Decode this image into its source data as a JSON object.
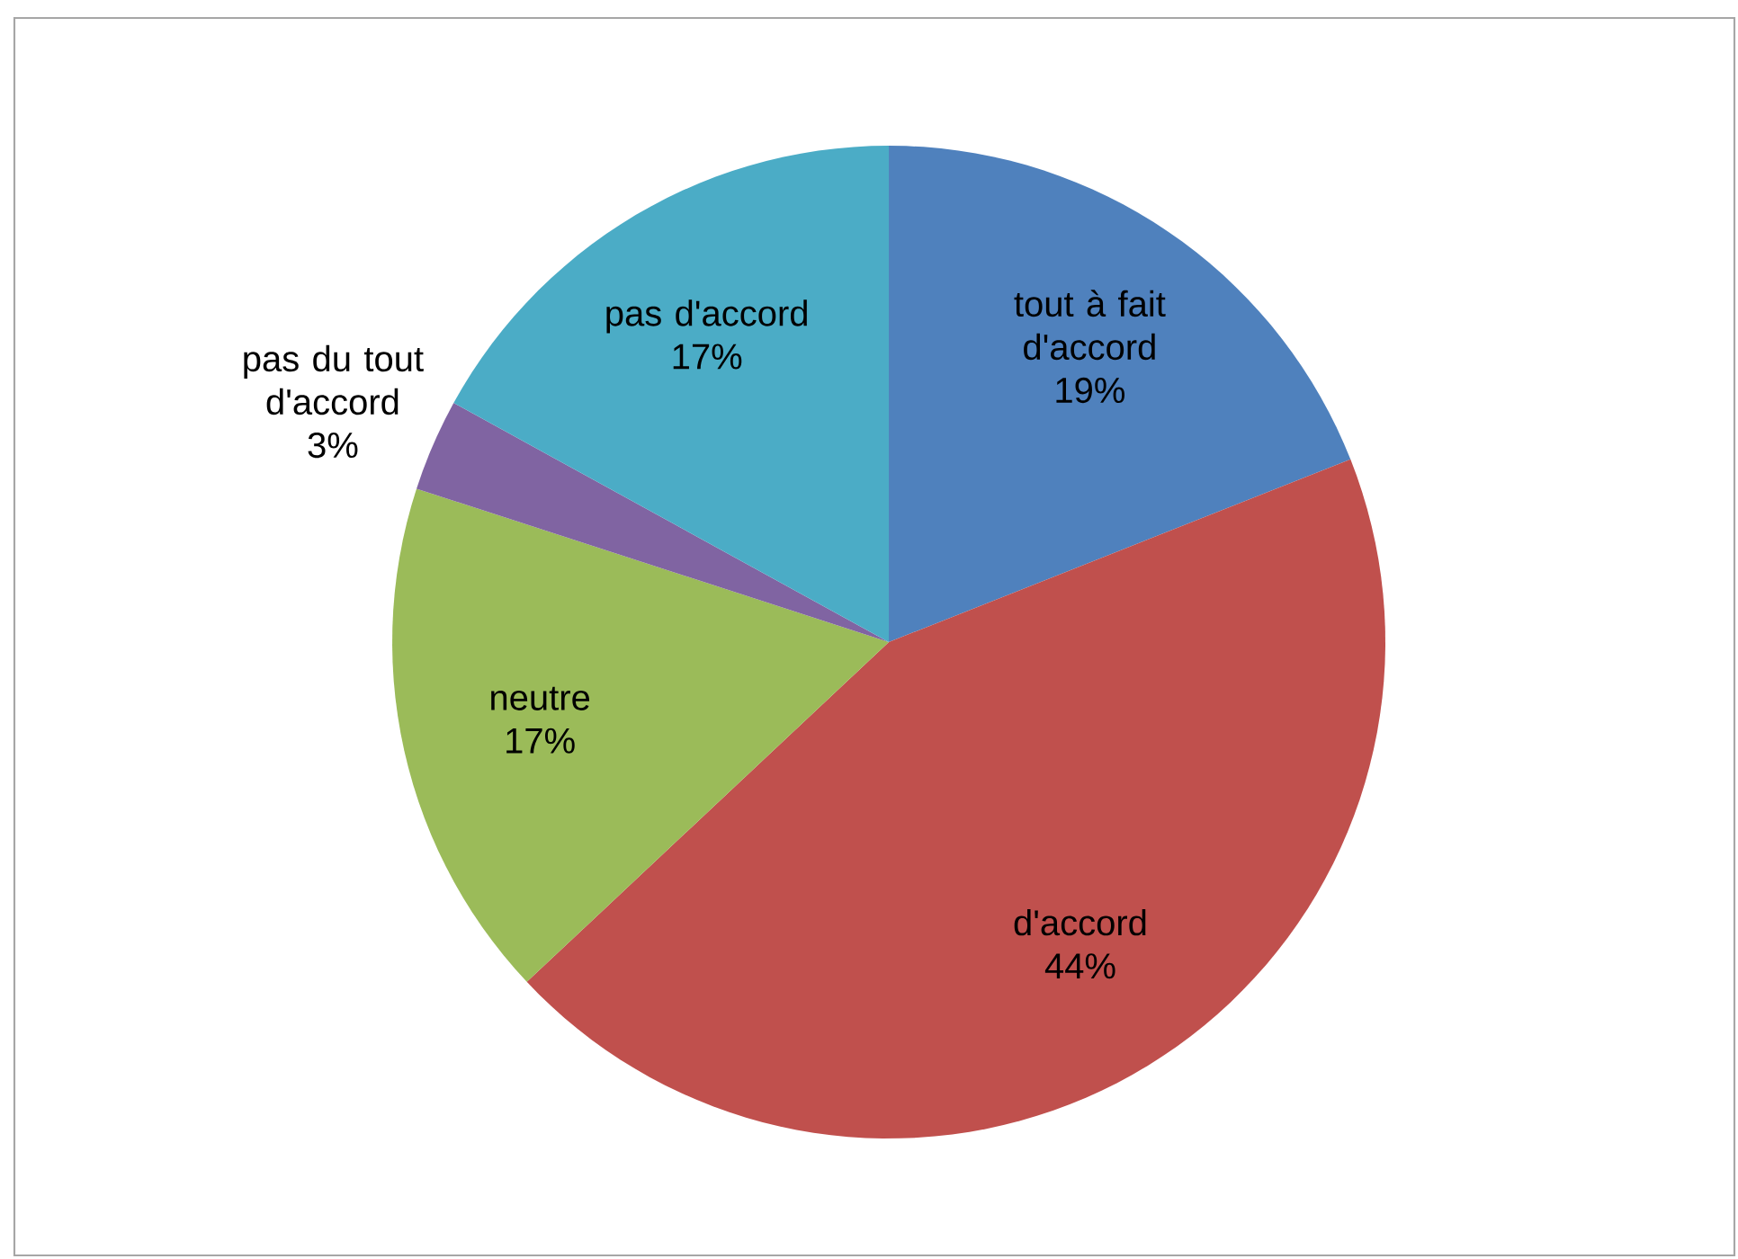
{
  "chart_data": {
    "type": "pie",
    "categories": [
      "tout à fait d'accord",
      "d'accord",
      "neutre",
      "pas du tout d'accord",
      "pas d'accord"
    ],
    "values": [
      19,
      44,
      17,
      3,
      17
    ],
    "value_labels": [
      "19%",
      "44%",
      "17%",
      "3%",
      "17%"
    ],
    "colors": [
      "#4f81bd",
      "#c0504d",
      "#9bbb59",
      "#8064a2",
      "#4bacc6"
    ]
  }
}
